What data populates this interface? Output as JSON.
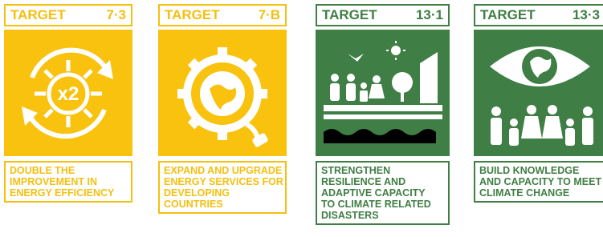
{
  "cards": [
    {
      "label": "TARGET",
      "number": "7·3",
      "icon_text": "x2",
      "description": [
        "DOUBLE THE",
        "IMPROVEMENT IN",
        "ENERGY EFFICIENCY"
      ]
    },
    {
      "label": "TARGET",
      "number": "7·B",
      "description": [
        "EXPAND AND UPGRADE",
        "ENERGY SERVICES FOR",
        "DEVELOPING",
        "COUNTRIES"
      ]
    },
    {
      "label": "TARGET",
      "number": "13·1",
      "description": [
        "STRENGTHEN",
        "RESILIENCE AND",
        "ADAPTIVE CAPACITY",
        "TO CLIMATE RELATED",
        "DISASTERS"
      ]
    },
    {
      "label": "TARGET",
      "number": "13·3",
      "description": [
        "BUILD KNOWLEDGE",
        "AND CAPACITY TO MEET",
        "CLIMATE CHANGE"
      ]
    }
  ]
}
